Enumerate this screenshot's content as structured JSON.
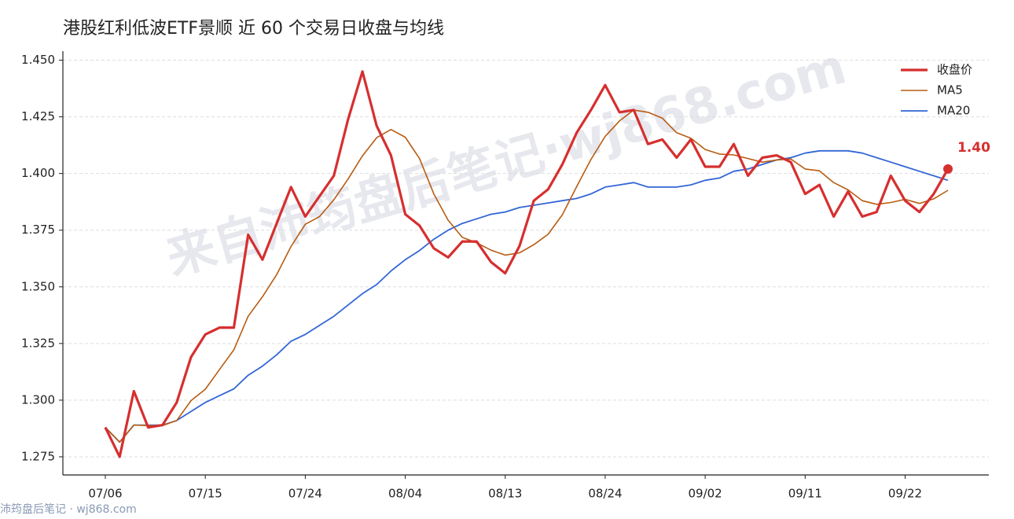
{
  "chart_data": {
    "type": "line",
    "title": "港股红利低波ETF景顺 近 60 个交易日收盘与均线",
    "watermark": "来自沛筠盘后笔记·wj868.com",
    "footer": "沛筠盘后笔记 · wj868.com",
    "annotation": "1.40",
    "categories": [
      "07/06",
      null,
      null,
      null,
      null,
      null,
      null,
      "07/15",
      null,
      null,
      null,
      null,
      null,
      null,
      "07/24",
      null,
      null,
      null,
      null,
      null,
      null,
      "08/04",
      null,
      null,
      null,
      null,
      null,
      null,
      "08/13",
      null,
      null,
      null,
      null,
      null,
      null,
      "08/24",
      null,
      null,
      null,
      null,
      null,
      null,
      "09/02",
      null,
      null,
      null,
      null,
      null,
      null,
      "09/11",
      null,
      null,
      null,
      null,
      null,
      null,
      "09/22",
      null,
      null,
      null
    ],
    "series": [
      {
        "name": "收盘价",
        "color": "#d62f2f",
        "values": [
          1.288,
          1.275,
          1.304,
          1.288,
          1.289,
          1.299,
          1.319,
          1.329,
          1.332,
          1.332,
          1.373,
          1.362,
          1.378,
          1.394,
          1.381,
          1.39,
          1.399,
          1.424,
          1.445,
          1.421,
          1.408,
          1.382,
          1.377,
          1.367,
          1.363,
          1.37,
          1.37,
          1.361,
          1.356,
          1.368,
          1.388,
          1.393,
          1.404,
          1.418,
          1.428,
          1.439,
          1.427,
          1.428,
          1.413,
          1.415,
          1.407,
          1.415,
          1.403,
          1.403,
          1.413,
          1.399,
          1.407,
          1.408,
          1.405,
          1.391,
          1.395,
          1.381,
          1.392,
          1.381,
          1.383,
          1.399,
          1.388,
          1.383,
          1.391,
          1.402
        ]
      },
      {
        "name": "MA5",
        "color": "#b85c12",
        "values": [
          1.288,
          1.2815,
          1.289,
          1.2888,
          1.2888,
          1.291,
          1.2998,
          1.3048,
          1.3136,
          1.3222,
          1.337,
          1.3456,
          1.3554,
          1.3678,
          1.3776,
          1.381,
          1.3884,
          1.3976,
          1.4078,
          1.4158,
          1.4194,
          1.416,
          1.4066,
          1.391,
          1.3794,
          1.3718,
          1.3694,
          1.3662,
          1.364,
          1.365,
          1.3686,
          1.3732,
          1.3818,
          1.3942,
          1.4062,
          1.4164,
          1.4232,
          1.428,
          1.427,
          1.4244,
          1.418,
          1.4156,
          1.4106,
          1.4086,
          1.4082,
          1.4066,
          1.405,
          1.406,
          1.4064,
          1.402,
          1.4012,
          1.396,
          1.3928,
          1.388,
          1.3864,
          1.3872,
          1.3886,
          1.3868,
          1.3888,
          1.3926
        ]
      },
      {
        "name": "MA20",
        "color": "#3366d6",
        "values": [
          1.288,
          1.2815,
          1.289,
          1.289,
          1.289,
          1.291,
          1.295,
          1.299,
          1.302,
          1.305,
          1.311,
          1.315,
          1.32,
          1.326,
          1.329,
          1.333,
          1.337,
          1.342,
          1.347,
          1.351,
          1.357,
          1.362,
          1.366,
          1.371,
          1.375,
          1.378,
          1.38,
          1.382,
          1.383,
          1.385,
          1.386,
          1.387,
          1.388,
          1.389,
          1.391,
          1.394,
          1.395,
          1.396,
          1.394,
          1.394,
          1.394,
          1.395,
          1.397,
          1.398,
          1.401,
          1.402,
          1.404,
          1.406,
          1.407,
          1.409,
          1.41,
          1.41,
          1.41,
          1.409,
          1.407,
          1.405,
          1.403,
          1.401,
          1.399,
          1.397
        ]
      }
    ],
    "ylim": [
      1.267,
      1.454
    ],
    "yticks": [
      1.275,
      {
        "value": 1.3,
        "label": "1.300"
      },
      1.325,
      {
        "value": 1.35,
        "label": "1.350"
      },
      1.375,
      {
        "value": 1.4,
        "label": "1.400"
      },
      1.425,
      {
        "value": 1.45,
        "label": "1.450"
      }
    ],
    "grid": true,
    "legend": "upper right"
  }
}
